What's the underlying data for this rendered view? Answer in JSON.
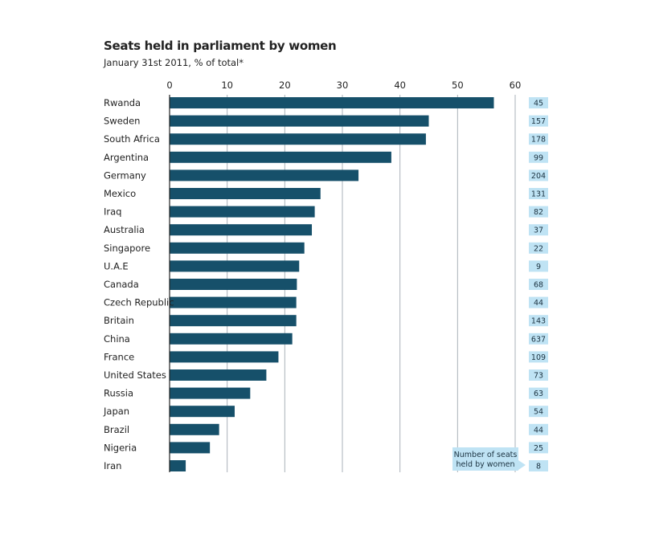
{
  "chart_data": {
    "type": "bar",
    "orientation": "horizontal",
    "title": "Seats held in parliament by women",
    "subtitle": "January 31st 2011, % of total*",
    "xlim": [
      0,
      60
    ],
    "ticks": [
      0,
      10,
      20,
      30,
      40,
      50,
      60
    ],
    "grid": true,
    "categories": [
      "Rwanda",
      "Sweden",
      "South Africa",
      "Argentina",
      "Germany",
      "Mexico",
      "Iraq",
      "Australia",
      "Singapore",
      "U.A.E",
      "Canada",
      "Czech Republic",
      "Britain",
      "China",
      "France",
      "United States",
      "Russia",
      "Japan",
      "Brazil",
      "Nigeria",
      "Iran"
    ],
    "values": [
      56.3,
      45.0,
      44.5,
      38.5,
      32.8,
      26.2,
      25.2,
      24.7,
      23.4,
      22.5,
      22.1,
      22.0,
      22.0,
      21.3,
      18.9,
      16.8,
      14.0,
      11.3,
      8.6,
      7.0,
      2.8
    ],
    "seats": [
      "45",
      "157",
      "178",
      "99",
      "204",
      "131",
      "82",
      "37",
      "22",
      "9",
      "68",
      "44",
      "143",
      "637",
      "109",
      "73",
      "63",
      "54",
      "44",
      "25",
      "8"
    ],
    "seats_note": "Number of seats held by women",
    "seats_note_lines": [
      "Number of seats",
      "held by women"
    ],
    "colors": {
      "bar": "#16506a",
      "grid": "#aab2b8",
      "seat_box": "#bfe3f4",
      "note_box": "#bfe3f4"
    }
  }
}
